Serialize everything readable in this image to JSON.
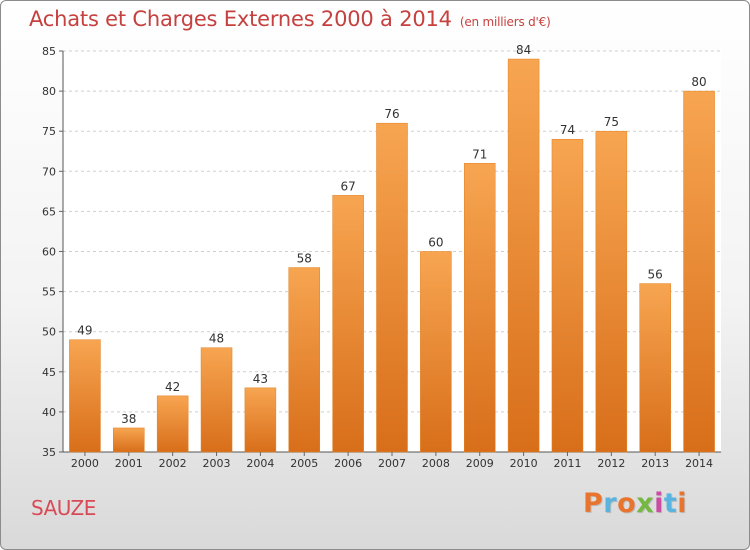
{
  "title": "Achats et Charges Externes 2000 à 2014",
  "title_unit": "(en milliers d'€)",
  "commune": "SAUZE",
  "logo": {
    "text": "Proxiti",
    "colors": [
      "#e8742d",
      "#5ab4e0",
      "#e8742d",
      "#74b842",
      "#c94da2",
      "#5ab4e0",
      "#e8742d"
    ]
  },
  "colors": {
    "bar_top": "#f7a551",
    "bar_bottom": "#d86e1a",
    "title": "#c5413f",
    "commune": "#d84a55"
  },
  "chart_data": {
    "type": "bar",
    "categories": [
      "2000",
      "2001",
      "2002",
      "2003",
      "2004",
      "2005",
      "2006",
      "2007",
      "2008",
      "2009",
      "2010",
      "2011",
      "2012",
      "2013",
      "2014"
    ],
    "values": [
      49,
      38,
      42,
      48,
      43,
      58,
      67,
      76,
      60,
      71,
      84,
      74,
      75,
      56,
      80
    ],
    "ylim": [
      35,
      85
    ],
    "yticks": [
      35,
      40,
      45,
      50,
      55,
      60,
      65,
      70,
      75,
      80,
      85
    ],
    "grid": true,
    "data_labels": true
  }
}
